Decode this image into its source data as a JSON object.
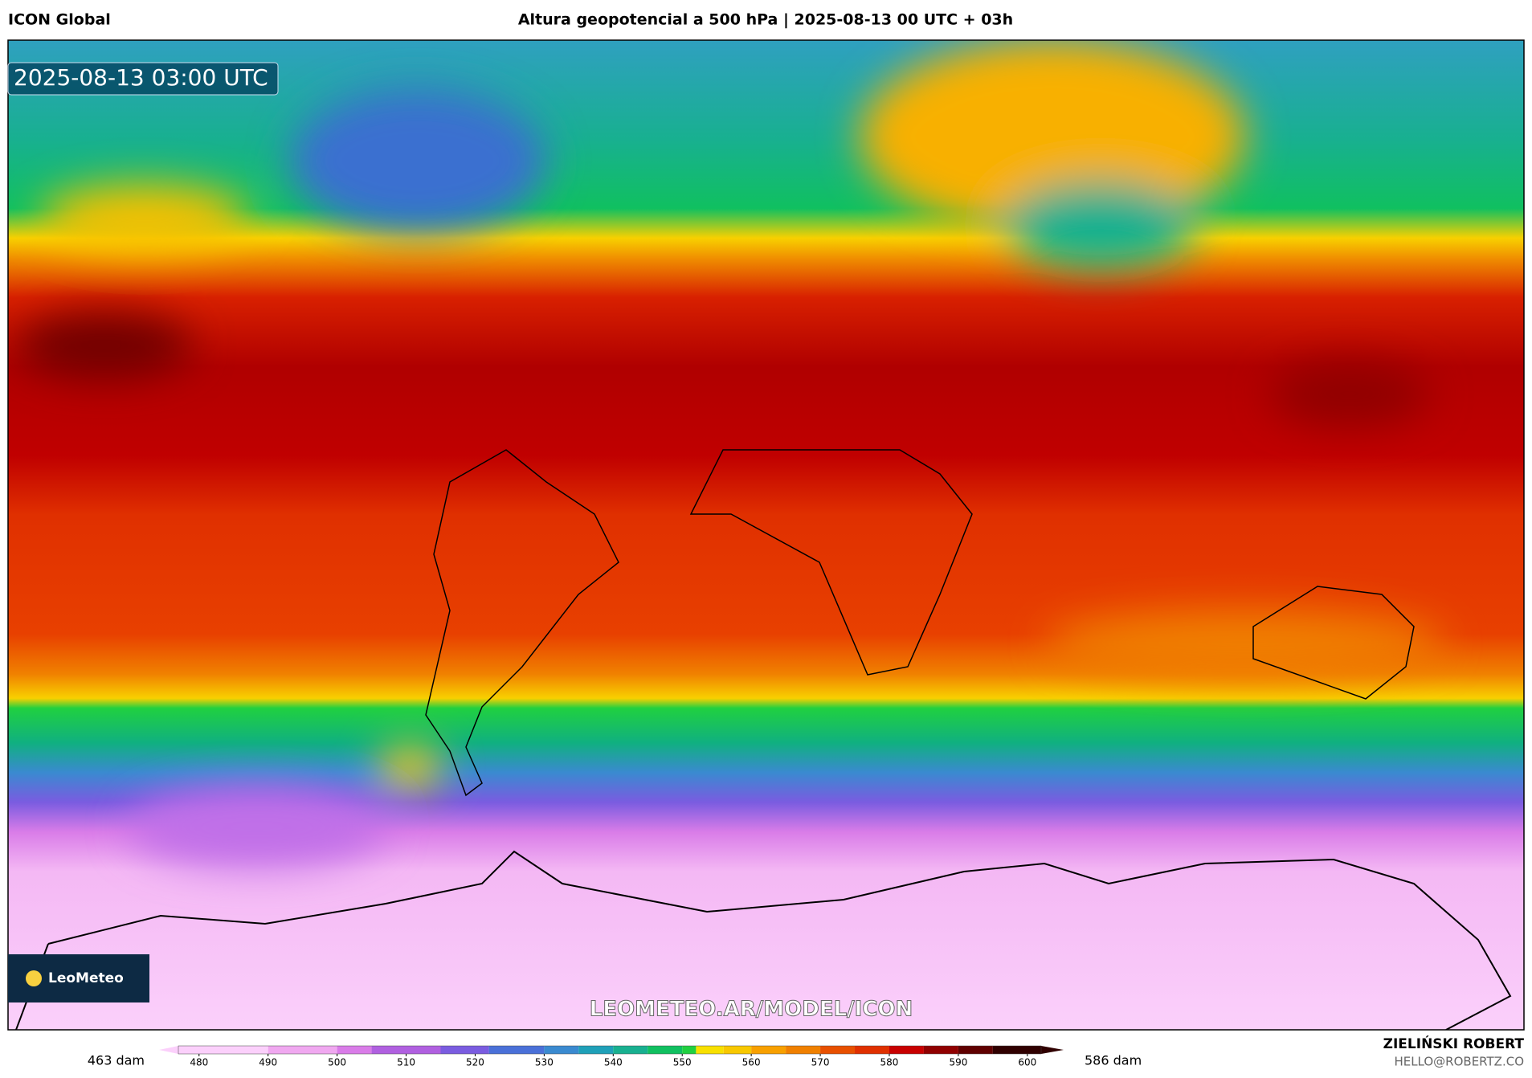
{
  "header": {
    "left": "ICON Global",
    "title": "Altura geopotencial a 500 hPa | 2025-08-13 00 UTC + 03h"
  },
  "map": {
    "timestamp": "2025-08-13 03:00 UTC",
    "logo": "LeoMeteo",
    "watermark": "LEOMETEO.AR/MODEL/ICON"
  },
  "colorbar": {
    "range": [
      477,
      602
    ],
    "ticks": [
      480,
      490,
      500,
      510,
      520,
      530,
      540,
      550,
      560,
      570,
      580,
      590,
      600
    ],
    "min_label": "463 dam",
    "max_label": "586 dam",
    "levels": [
      {
        "value": 477,
        "color": "#fbd0fb"
      },
      {
        "value": 490,
        "color": "#f0a8f0"
      },
      {
        "value": 500,
        "color": "#d97ce8"
      },
      {
        "value": 505,
        "color": "#b060e0"
      },
      {
        "value": 515,
        "color": "#7a5ce0"
      },
      {
        "value": 522,
        "color": "#4a70d8"
      },
      {
        "value": 530,
        "color": "#3a8ad0"
      },
      {
        "value": 535,
        "color": "#1fa0b8"
      },
      {
        "value": 540,
        "color": "#18b090"
      },
      {
        "value": 545,
        "color": "#10c060"
      },
      {
        "value": 550,
        "color": "#20d040"
      },
      {
        "value": 552,
        "color": "#f8e000"
      },
      {
        "value": 556,
        "color": "#f8c800"
      },
      {
        "value": 560,
        "color": "#f8a000"
      },
      {
        "value": 565,
        "color": "#f08000"
      },
      {
        "value": 570,
        "color": "#e85000"
      },
      {
        "value": 575,
        "color": "#e03000"
      },
      {
        "value": 580,
        "color": "#c80000"
      },
      {
        "value": 585,
        "color": "#900000"
      },
      {
        "value": 590,
        "color": "#600000"
      },
      {
        "value": 595,
        "color": "#300000"
      }
    ]
  },
  "footer": {
    "author": "ZIELIŃSKI ROBERT",
    "email": "HELLO@ROBERTZ.CO"
  }
}
